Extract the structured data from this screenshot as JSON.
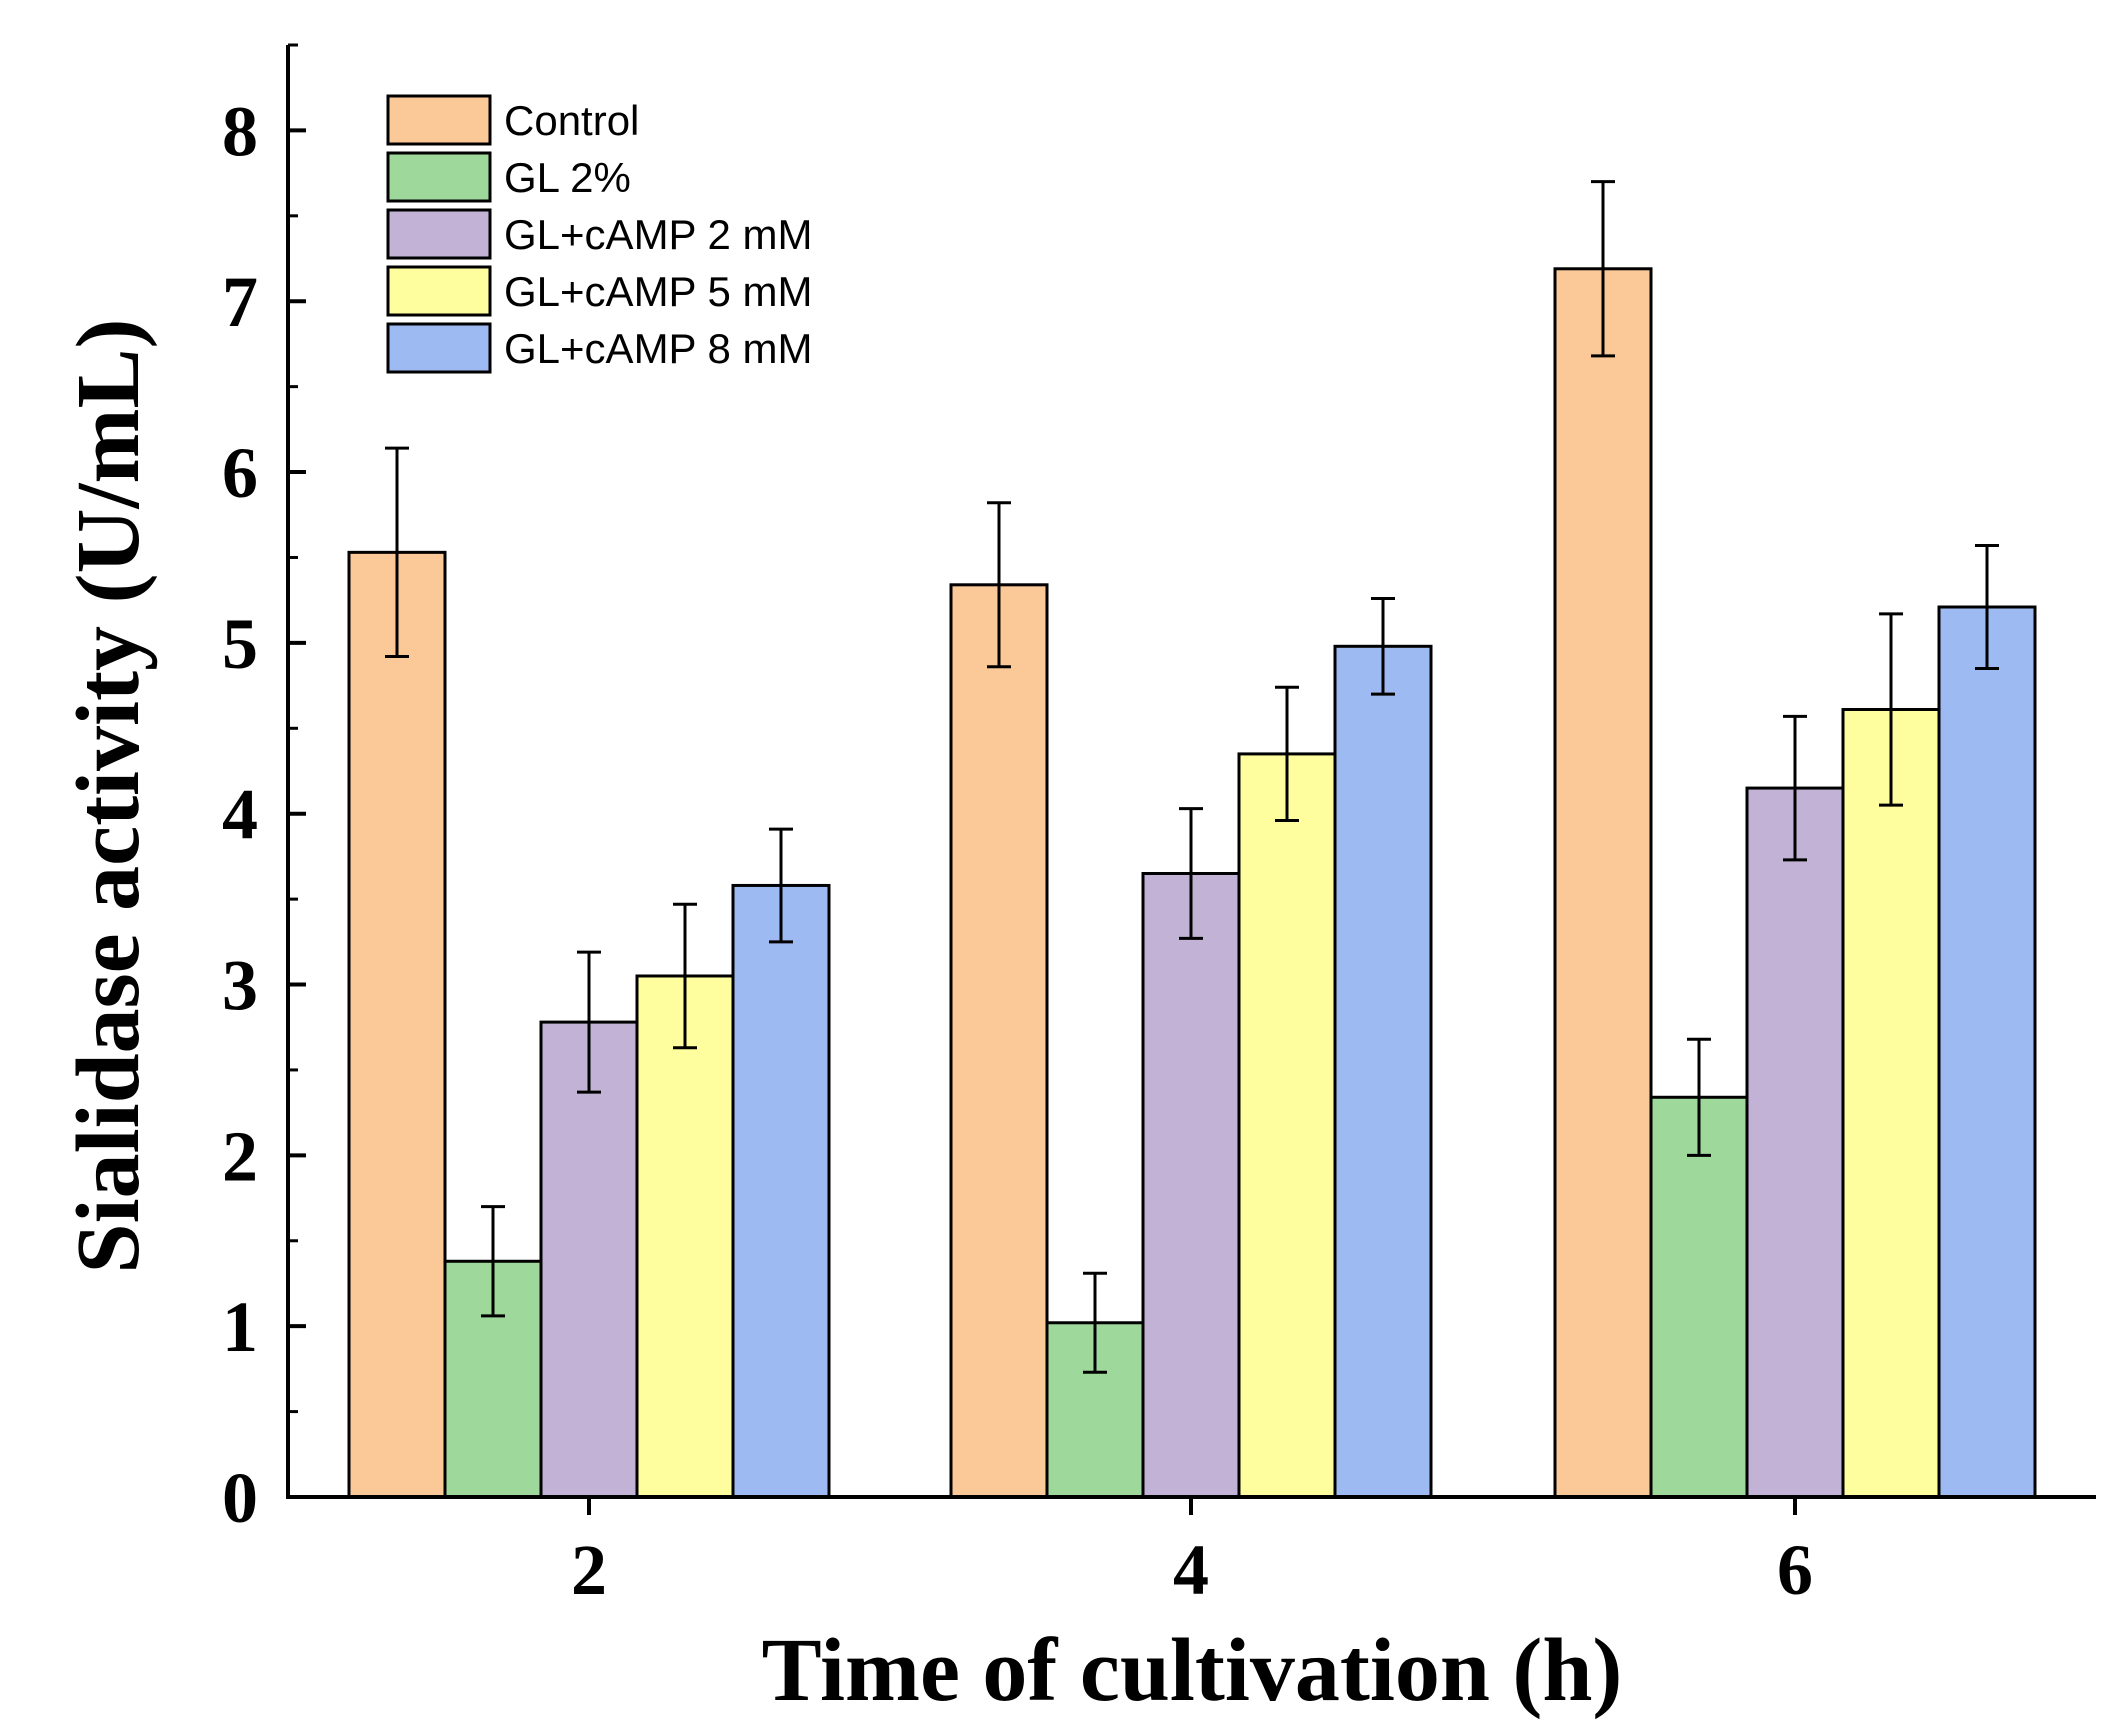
{
  "chart_data": {
    "type": "bar",
    "title": "",
    "xlabel": "Time of cultivation (h)",
    "ylabel": "Sialidase activity (U/mL)",
    "categories": [
      "2",
      "4",
      "6"
    ],
    "ylim": [
      0,
      8.5
    ],
    "yticks": [
      "0",
      "1",
      "2",
      "3",
      "4",
      "5",
      "6",
      "7",
      "8"
    ],
    "legend_position": "top-left",
    "grid": false,
    "series": [
      {
        "name": "Control",
        "color": "#FBC897",
        "values": [
          5.53,
          5.34,
          7.19
        ],
        "errors": [
          0.61,
          0.48,
          0.51
        ]
      },
      {
        "name": "GL 2%",
        "color": "#9FD89B",
        "values": [
          1.38,
          1.02,
          2.34
        ],
        "errors": [
          0.32,
          0.29,
          0.34
        ]
      },
      {
        "name": "GL+cAMP 2 mM",
        "color": "#C1B2D6",
        "values": [
          2.78,
          3.65,
          4.15
        ],
        "errors": [
          0.41,
          0.38,
          0.42
        ]
      },
      {
        "name": "GL+cAMP 5 mM",
        "color": "#FEFE9E",
        "values": [
          3.05,
          4.35,
          4.61
        ],
        "errors": [
          0.42,
          0.39,
          0.56
        ]
      },
      {
        "name": "GL+cAMP 8 mM",
        "color": "#9EBAF2",
        "values": [
          3.58,
          4.98,
          5.21
        ],
        "errors": [
          0.33,
          0.28,
          0.36
        ]
      }
    ]
  }
}
